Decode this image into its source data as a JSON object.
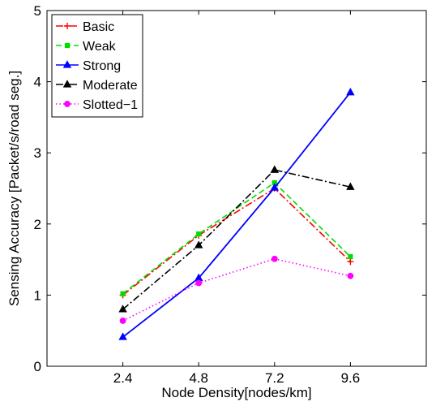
{
  "chart_data": {
    "type": "line",
    "xlabel": "Node Density[nodes/km]",
    "ylabel": "Sensing Accuracy [Packet/s/road seg.]",
    "x": [
      2.4,
      4.8,
      7.2,
      9.6
    ],
    "xlim": [
      0,
      12
    ],
    "ylim": [
      0,
      5
    ],
    "xticks": [
      "2.4",
      "4.8",
      "7.2",
      "9.6"
    ],
    "yticks": [
      "0",
      "1",
      "2",
      "3",
      "4",
      "5"
    ],
    "grid": false,
    "legend_position": "top-left",
    "series": [
      {
        "name": "Basic",
        "values": [
          1.0,
          1.84,
          2.5,
          1.47
        ],
        "color": "#ff0000",
        "dash": "dashdot",
        "marker": "plus"
      },
      {
        "name": "Weak",
        "values": [
          1.02,
          1.86,
          2.58,
          1.54
        ],
        "color": "#00dd00",
        "dash": "dashed",
        "marker": "square"
      },
      {
        "name": "Strong",
        "values": [
          0.41,
          1.24,
          2.51,
          3.85
        ],
        "color": "#0000ff",
        "dash": "solid",
        "marker": "triangle"
      },
      {
        "name": "Moderate",
        "values": [
          0.8,
          1.7,
          2.76,
          2.52
        ],
        "color": "#000000",
        "dash": "dashdot",
        "marker": "triangle"
      },
      {
        "name": "Slotted−1",
        "values": [
          0.64,
          1.17,
          1.51,
          1.27
        ],
        "color": "#ff00ff",
        "dash": "dotted",
        "marker": "circle"
      }
    ]
  }
}
